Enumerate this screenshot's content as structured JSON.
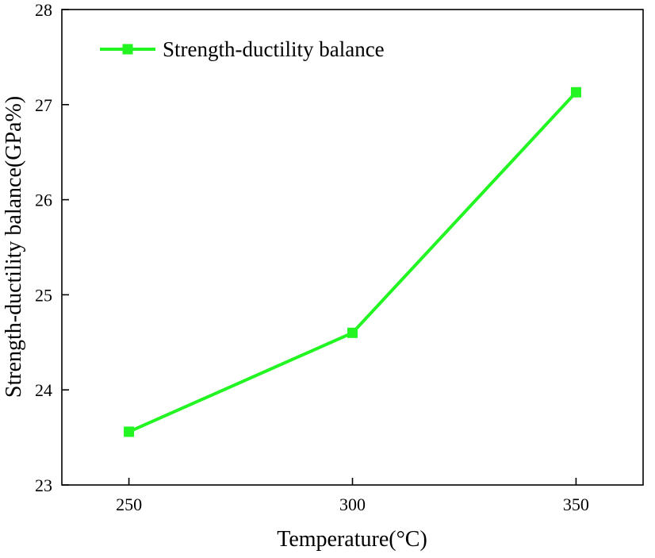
{
  "chart_data": {
    "type": "line",
    "title": "",
    "xlabel": "Temperature(°C)",
    "ylabel": "Strength-ductility balance(GPa%)",
    "x": [
      250,
      300,
      350
    ],
    "xticks": [
      "250",
      "300",
      "350"
    ],
    "xlim": [
      235,
      365
    ],
    "ylim": [
      23,
      28
    ],
    "yticks": [
      "23",
      "24",
      "25",
      "26",
      "27",
      "28"
    ],
    "grid": false,
    "legend_position": "top-left",
    "series": [
      {
        "name": "Strength-ductility balance",
        "color": "#22f522",
        "marker": "square",
        "values": [
          23.56,
          24.6,
          27.13
        ]
      }
    ]
  }
}
